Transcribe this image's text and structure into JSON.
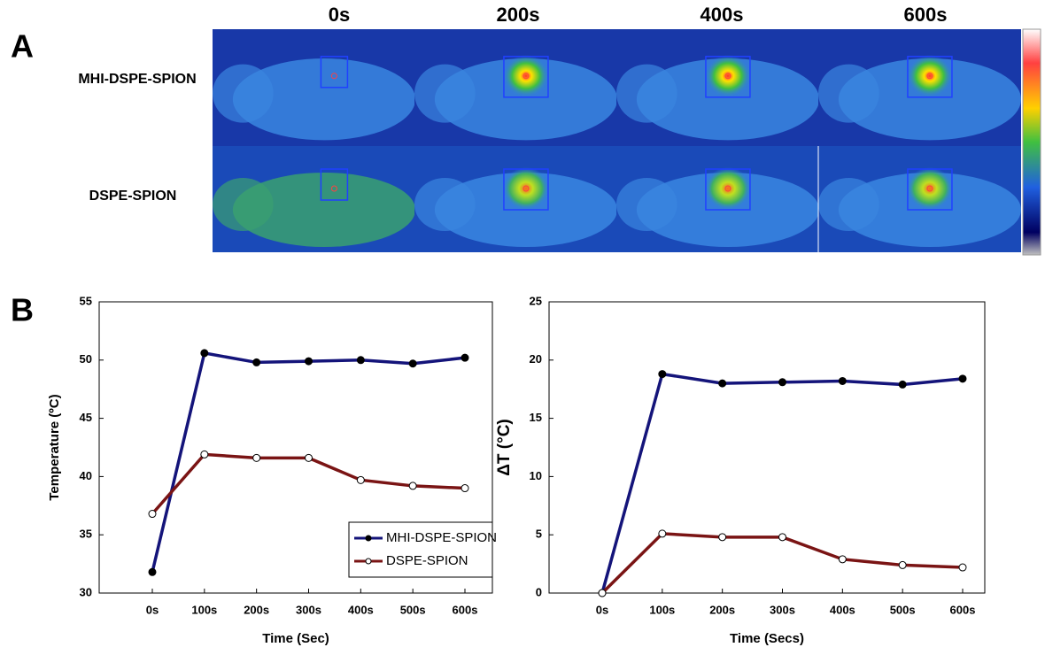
{
  "panel_a": {
    "label": "A",
    "columns": [
      "0s",
      "200s",
      "400s",
      "600s"
    ],
    "rows": [
      "MHI-DSPE-SPION",
      "DSPE-SPION"
    ]
  },
  "panel_b": {
    "label": "B"
  },
  "chart_data": [
    {
      "type": "line",
      "xlabel": "Time (Sec)",
      "ylabel": "Temperature (ºC)",
      "categories": [
        "0s",
        "100s",
        "200s",
        "300s",
        "400s",
        "500s",
        "600s"
      ],
      "series": [
        {
          "name": "MHI-DSPE-SPION",
          "color": "#14147a",
          "marker": "#000000",
          "values": [
            31.8,
            50.6,
            49.8,
            49.9,
            50.0,
            49.7,
            50.2
          ]
        },
        {
          "name": "DSPE-SPION",
          "color": "#7a1414",
          "marker": "#ffffff",
          "values": [
            36.8,
            41.9,
            41.6,
            41.6,
            39.7,
            39.2,
            39.0
          ]
        }
      ],
      "ylim": [
        30,
        55
      ],
      "yticks": [
        30,
        35,
        40,
        45,
        50,
        55
      ],
      "legend": "lower right"
    },
    {
      "type": "line",
      "xlabel": "Time (Secs)",
      "ylabel": "ΔT (°C)",
      "categories": [
        "0s",
        "100s",
        "200s",
        "300s",
        "400s",
        "500s",
        "600s"
      ],
      "series": [
        {
          "color": "#14147a",
          "marker": "#000000",
          "values": [
            0,
            18.8,
            18.0,
            18.1,
            18.2,
            17.9,
            18.4
          ]
        },
        {
          "color": "#7a1414",
          "marker": "#ffffff",
          "values": [
            0,
            5.1,
            4.8,
            4.8,
            2.9,
            2.4,
            2.2
          ]
        }
      ],
      "ylim": [
        0,
        25
      ],
      "yticks": [
        0,
        5,
        10,
        15,
        20,
        25
      ]
    }
  ]
}
